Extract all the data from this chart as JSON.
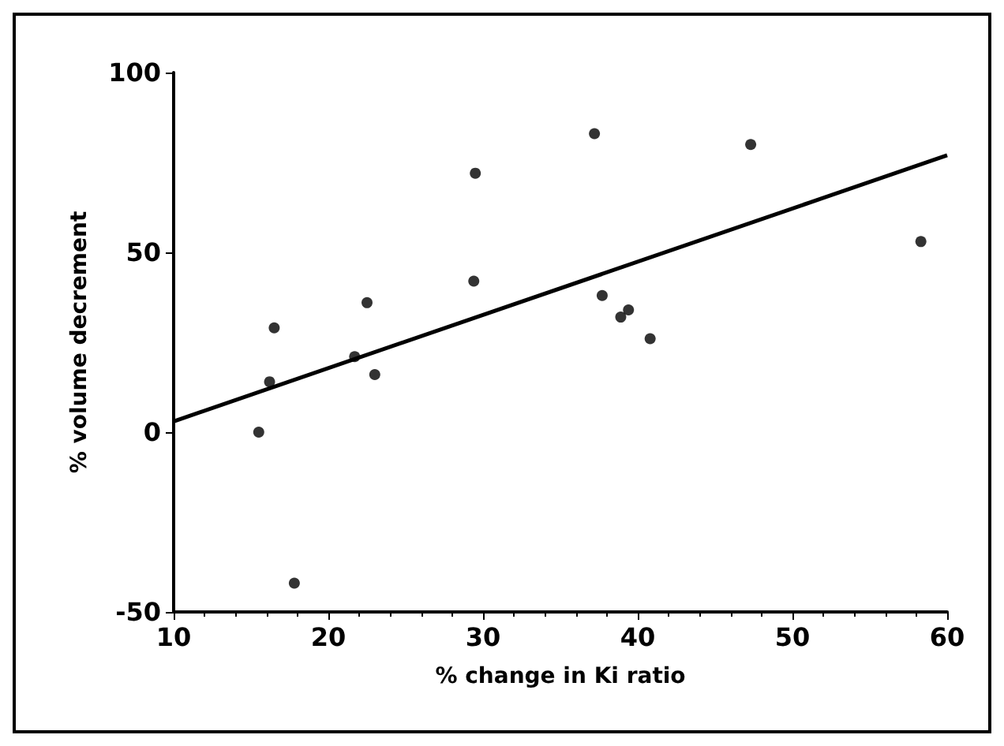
{
  "chart_data": {
    "type": "scatter",
    "xlabel": "% change in Ki ratio",
    "ylabel": "% volume decrement",
    "x": [
      15.5,
      16.2,
      16.5,
      17.8,
      21.7,
      22.5,
      23.0,
      29.4,
      29.5,
      37.2,
      37.7,
      38.9,
      39.4,
      40.8,
      47.3,
      58.3
    ],
    "values": [
      0,
      14,
      29,
      -42,
      21,
      36,
      16,
      42,
      72,
      83,
      38,
      32,
      34,
      26,
      80,
      53
    ],
    "color": "#000000",
    "marker": "circle",
    "series": [
      {
        "type": "line",
        "x": [
          10,
          60
        ],
        "values": [
          3,
          77
        ],
        "color": "#000000",
        "line_style": "solid",
        "marker": "none"
      }
    ],
    "xlim": [
      10,
      60
    ],
    "xticks": [
      10,
      20,
      30,
      40,
      50,
      60
    ],
    "ylim": [
      -50,
      100
    ],
    "yticks": [
      -50,
      0,
      50,
      100
    ],
    "grid": false
  }
}
